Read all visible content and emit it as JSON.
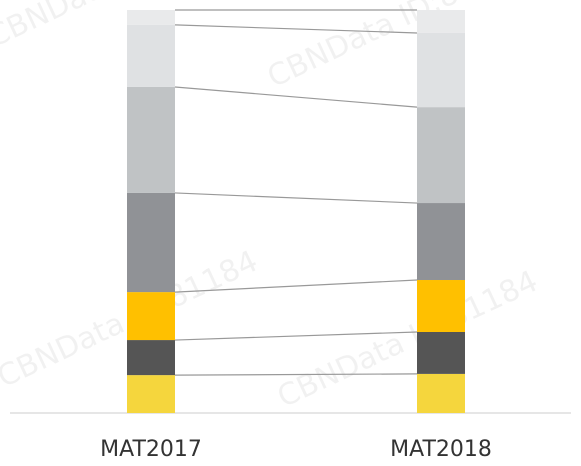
{
  "chart_data": {
    "type": "bar",
    "stacked": true,
    "categories": [
      "MAT2017",
      "MAT2018"
    ],
    "ylim": [
      0,
      100
    ],
    "connectors": true,
    "watermark": "CBNData ID:81184",
    "series": [
      {
        "color": "#f5d63d",
        "values": [
          9.4,
          9.7
        ]
      },
      {
        "color": "#555555",
        "values": [
          8.7,
          10.4
        ]
      },
      {
        "color": "#ffc000",
        "values": [
          11.9,
          12.9
        ]
      },
      {
        "color": "#909296",
        "values": [
          24.6,
          19.1
        ]
      },
      {
        "color": "#c0c3c5",
        "values": [
          26.3,
          23.8
        ]
      },
      {
        "color": "#dfe1e3",
        "values": [
          15.4,
          18.4
        ]
      },
      {
        "color": "#e9eaeb",
        "values": [
          3.7,
          5.7
        ]
      }
    ]
  }
}
